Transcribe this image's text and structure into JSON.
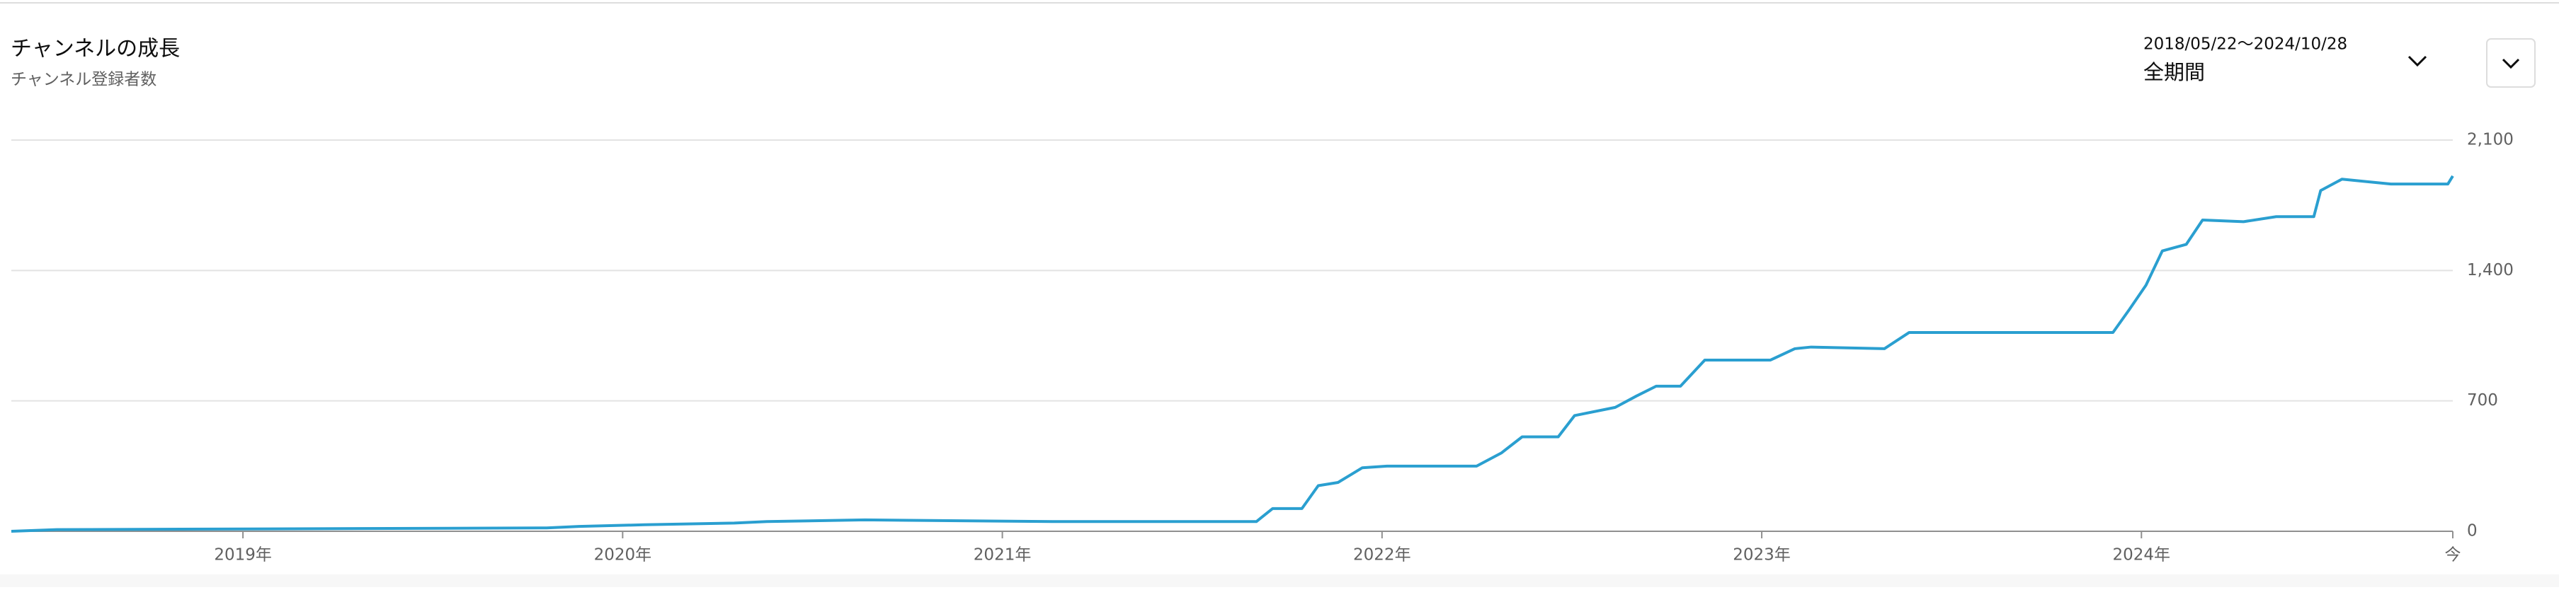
{
  "chart_data": {
    "type": "line",
    "title": "チャンネルの成長",
    "subtitle": "チャンネル登録者数",
    "date_range": "2018/05/22〜2024/10/28",
    "period": "全期間",
    "xlim": [
      2018.39,
      2024.82
    ],
    "xticks": [
      {
        "value": 2019,
        "label": "2019年"
      },
      {
        "value": 2020,
        "label": "2020年"
      },
      {
        "value": 2021,
        "label": "2021年"
      },
      {
        "value": 2022,
        "label": "2022年"
      },
      {
        "value": 2023,
        "label": "2023年"
      },
      {
        "value": 2024,
        "label": "2024年"
      },
      {
        "value": 2024.82,
        "label": "今"
      }
    ],
    "ylim": [
      0,
      2100
    ],
    "yticks": [
      0,
      700,
      {
        "value": 1400,
        "label": "1,400"
      },
      {
        "value": 2100,
        "label": "2,100"
      }
    ],
    "grid": true,
    "series": [
      {
        "name": "チャンネル登録者数",
        "color": "#2a9fd0",
        "x": [
          2018.39,
          2018.51,
          2019.8,
          2019.885,
          2020.057,
          2020.294,
          2020.38,
          2020.638,
          2021.132,
          2021.669,
          2021.712,
          2021.789,
          2021.832,
          2021.884,
          2021.948,
          2022.013,
          2022.249,
          2022.314,
          2022.369,
          2022.464,
          2022.507,
          2022.614,
          2022.67,
          2022.722,
          2022.786,
          2022.85,
          2023.023,
          2023.087,
          2023.13,
          2023.323,
          2023.388,
          2023.925,
          2023.968,
          2024.012,
          2024.055,
          2024.118,
          2024.161,
          2024.269,
          2024.355,
          2024.454,
          2024.472,
          2024.528,
          2024.657,
          2024.807,
          2024.82
        ],
        "values": [
          0,
          9,
          18,
          26,
          35,
          44,
          52,
          61,
          52,
          52,
          122,
          122,
          245,
          262,
          341,
          350,
          350,
          420,
          507,
          507,
          621,
          665,
          726,
          779,
          779,
          919,
          919,
          980,
          989,
          980,
          1067,
          1067,
          1190,
          1321,
          1505,
          1540,
          1671,
          1662,
          1689,
          1689,
          1829,
          1890,
          1864,
          1864,
          1907
        ]
      }
    ]
  }
}
